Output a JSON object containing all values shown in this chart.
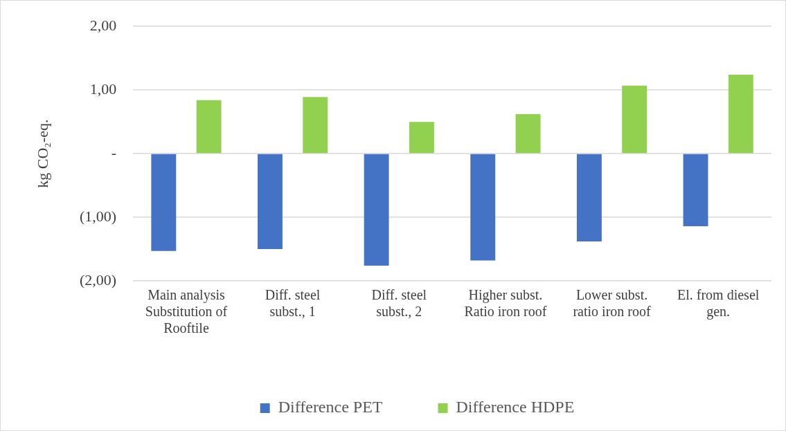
{
  "chart_data": {
    "type": "bar",
    "ylabel": "kg CO₂-eq.",
    "categories": [
      "Main analysis Substitution of Rooftile",
      "Diff. steel subst., 1",
      "Diff. steel subst., 2",
      "Higher subst. Ratio iron roof",
      "Lower subst. ratio iron roof",
      "El. from diesel gen."
    ],
    "series": [
      {
        "name": "Difference PET",
        "color": "#4472c4",
        "values": [
          -1.53,
          -1.5,
          -1.76,
          -1.68,
          -1.38,
          -1.14
        ]
      },
      {
        "name": "Difference HDPE",
        "color": "#92d050",
        "values": [
          0.84,
          0.89,
          0.5,
          0.62,
          1.07,
          1.24
        ]
      }
    ],
    "ylim": [
      -2,
      2
    ],
    "yticks": [
      {
        "value": 2,
        "label": "2,00"
      },
      {
        "value": 1,
        "label": "1,00"
      },
      {
        "value": 0,
        "label": "-"
      },
      {
        "value": -1,
        "label": "(1,00)"
      },
      {
        "value": -2,
        "label": "(2,00)"
      }
    ],
    "grid": "y",
    "legend": "bottom"
  }
}
